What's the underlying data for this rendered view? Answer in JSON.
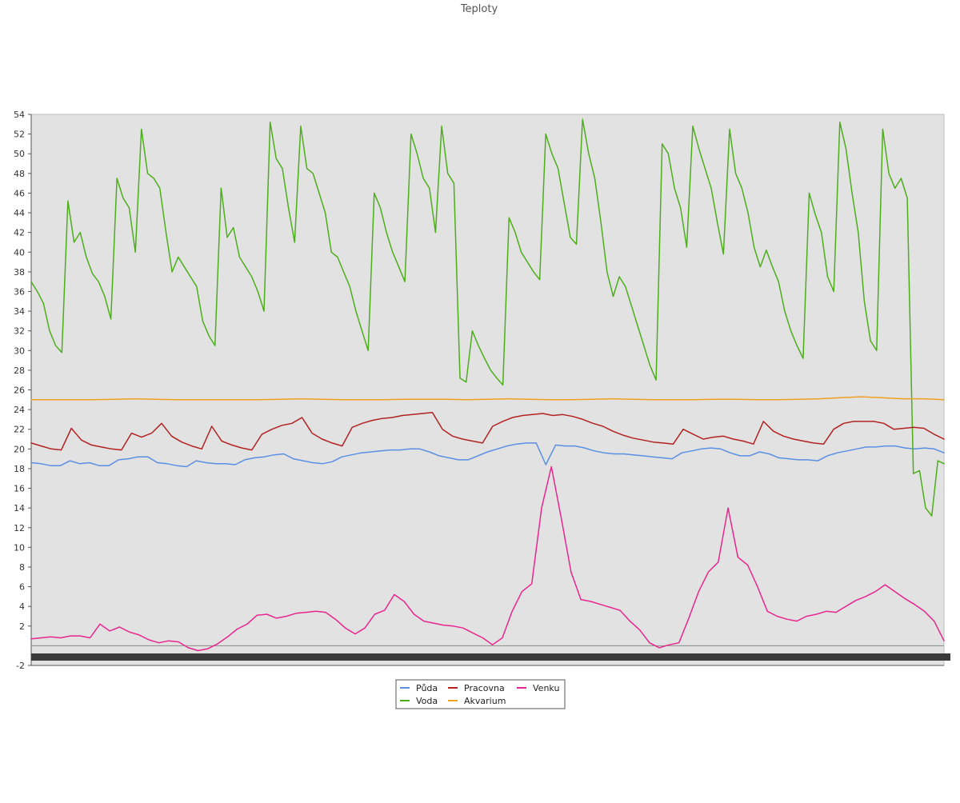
{
  "chart_data": {
    "type": "line",
    "title": "Teploty",
    "xlabel": "",
    "ylabel": "",
    "ylim": [
      -2,
      54
    ],
    "yticks": [
      -2,
      2,
      4,
      6,
      8,
      10,
      12,
      14,
      16,
      18,
      20,
      22,
      24,
      26,
      28,
      30,
      32,
      34,
      36,
      38,
      40,
      42,
      44,
      46,
      48,
      50,
      52,
      54
    ],
    "grid": false,
    "legend_position": "bottom-center",
    "plot_background": "#e2e2e2",
    "series": [
      {
        "name": "Půda",
        "color": "#5b8fe3",
        "y": [
          18.6,
          18.5,
          18.3,
          18.3,
          18.8,
          18.5,
          18.6,
          18.3,
          18.3,
          18.9,
          19.0,
          19.2,
          19.2,
          18.6,
          18.5,
          18.3,
          18.2,
          18.8,
          18.6,
          18.5,
          18.5,
          18.4,
          18.9,
          19.1,
          19.2,
          19.4,
          19.5,
          19.0,
          18.8,
          18.6,
          18.5,
          18.7,
          19.2,
          19.4,
          19.6,
          19.7,
          19.8,
          19.9,
          19.9,
          20.0,
          20.0,
          19.7,
          19.3,
          19.1,
          18.9,
          18.9,
          19.3,
          19.7,
          20.0,
          20.3,
          20.5,
          20.6,
          20.6,
          18.4,
          20.4,
          20.3,
          20.3,
          20.1,
          19.8,
          19.6,
          19.5,
          19.5,
          19.4,
          19.3,
          19.2,
          19.1,
          19.0,
          19.6,
          19.8,
          20.0,
          20.1,
          20.0,
          19.6,
          19.3,
          19.3,
          19.7,
          19.5,
          19.1,
          19.0,
          18.9,
          18.9,
          18.8,
          19.3,
          19.6,
          19.8,
          20.0,
          20.2,
          20.2,
          20.3,
          20.3,
          20.1,
          20.0,
          20.1,
          20.0,
          19.6
        ]
      },
      {
        "name": "Voda",
        "color": "#4caf1a",
        "y": [
          37.0,
          36.0,
          34.8,
          32.0,
          30.5,
          29.8,
          45.2,
          41.0,
          42.0,
          39.5,
          37.8,
          37.0,
          35.5,
          33.2,
          47.5,
          45.5,
          44.5,
          40.0,
          52.5,
          48.0,
          47.5,
          46.5,
          42.0,
          38.0,
          39.5,
          38.5,
          37.5,
          36.5,
          33.0,
          31.5,
          30.5,
          46.5,
          41.5,
          42.5,
          39.5,
          38.5,
          37.5,
          36.0,
          34.0,
          53.2,
          49.5,
          48.5,
          44.5,
          41.0,
          52.8,
          48.5,
          48.0,
          46.0,
          44.0,
          40.0,
          39.5,
          38.0,
          36.5,
          34.0,
          32.0,
          30.0,
          46.0,
          44.5,
          42.0,
          40.0,
          38.5,
          37.0,
          52.0,
          50.0,
          47.5,
          46.5,
          42.0,
          52.8,
          48.0,
          47.0,
          27.2,
          26.8,
          32.0,
          30.5,
          29.2,
          28.0,
          27.2,
          26.5,
          43.5,
          42.0,
          40.0,
          39.0,
          38.0,
          37.2,
          52.0,
          50.0,
          48.5,
          45.0,
          41.5,
          40.8,
          53.5,
          50.0,
          47.5,
          43.0,
          38.0,
          35.5,
          37.5,
          36.5,
          34.5,
          32.5,
          30.5,
          28.5,
          27.0,
          51.0,
          50.0,
          46.5,
          44.5,
          40.5,
          52.8,
          50.5,
          48.5,
          46.5,
          43.0,
          39.8,
          52.5,
          48.0,
          46.5,
          44.0,
          40.5,
          38.5,
          40.2,
          38.5,
          37.0,
          34.0,
          32.0,
          30.5,
          29.2,
          46.0,
          43.8,
          42.0,
          37.5,
          36.0,
          53.2,
          50.5,
          46.0,
          42.0,
          35.0,
          31.0,
          30.0,
          52.5,
          48.0,
          46.5,
          47.5,
          45.5,
          17.5,
          17.8,
          14.0,
          13.2,
          18.8,
          18.5
        ]
      },
      {
        "name": "Pracovna",
        "color": "#b22222",
        "y": [
          20.6,
          20.3,
          20.0,
          19.9,
          22.1,
          20.9,
          20.4,
          20.2,
          20.0,
          19.9,
          21.6,
          21.2,
          21.6,
          22.6,
          21.3,
          20.7,
          20.3,
          20.0,
          22.3,
          20.8,
          20.4,
          20.1,
          19.9,
          21.5,
          22.0,
          22.4,
          22.6,
          23.2,
          21.6,
          21.0,
          20.6,
          20.3,
          22.2,
          22.6,
          22.9,
          23.1,
          23.2,
          23.4,
          23.5,
          23.6,
          23.7,
          22.0,
          21.3,
          21.0,
          20.8,
          20.6,
          22.3,
          22.8,
          23.2,
          23.4,
          23.5,
          23.6,
          23.4,
          23.5,
          23.3,
          23.0,
          22.6,
          22.3,
          21.8,
          21.4,
          21.1,
          20.9,
          20.7,
          20.6,
          20.5,
          22.0,
          21.5,
          21.0,
          21.2,
          21.3,
          21.0,
          20.8,
          20.5,
          22.8,
          21.8,
          21.3,
          21.0,
          20.8,
          20.6,
          20.5,
          22.0,
          22.6,
          22.8,
          22.8,
          22.8,
          22.6,
          22.0,
          22.1,
          22.2,
          22.1,
          21.5,
          21.0
        ]
      },
      {
        "name": "Akvarium",
        "color": "#f0a020",
        "y": [
          25.0,
          25.0,
          25.0,
          25.0,
          25.05,
          25.1,
          25.05,
          25.0,
          25.0,
          25.0,
          25.0,
          25.0,
          25.05,
          25.1,
          25.05,
          25.0,
          25.0,
          25.0,
          25.05,
          25.05,
          25.05,
          25.0,
          25.05,
          25.1,
          25.05,
          25.0,
          25.0,
          25.05,
          25.1,
          25.05,
          25.0,
          25.0,
          25.0,
          25.05,
          25.05,
          25.0,
          25.0,
          25.05,
          25.1,
          25.2,
          25.3,
          25.2,
          25.1,
          25.1,
          25.0
        ]
      },
      {
        "name": "Venku",
        "color": "#e8268f",
        "y": [
          0.7,
          0.8,
          0.9,
          0.8,
          1.0,
          1.0,
          0.8,
          2.2,
          1.5,
          1.9,
          1.4,
          1.1,
          0.6,
          0.3,
          0.5,
          0.4,
          -0.2,
          -0.5,
          -0.3,
          0.2,
          0.9,
          1.7,
          2.2,
          3.1,
          3.2,
          2.8,
          3.0,
          3.3,
          3.4,
          3.5,
          3.4,
          2.7,
          1.8,
          1.2,
          1.8,
          3.2,
          3.6,
          5.2,
          4.5,
          3.2,
          2.5,
          2.3,
          2.1,
          2.0,
          1.8,
          1.3,
          0.8,
          0.1,
          0.8,
          3.5,
          5.5,
          6.3,
          14.0,
          18.2,
          13.0,
          7.5,
          4.7,
          4.5,
          4.2,
          3.9,
          3.6,
          2.5,
          1.6,
          0.3,
          -0.2,
          0.1,
          0.3,
          2.8,
          5.5,
          7.5,
          8.5,
          14.0,
          9.0,
          8.2,
          6.0,
          3.5,
          3.0,
          2.7,
          2.5,
          3.0,
          3.2,
          3.5,
          3.4,
          4.0,
          4.6,
          5.0,
          5.5,
          6.2,
          5.5,
          4.8,
          4.2,
          3.5,
          2.5,
          0.5
        ]
      }
    ]
  }
}
